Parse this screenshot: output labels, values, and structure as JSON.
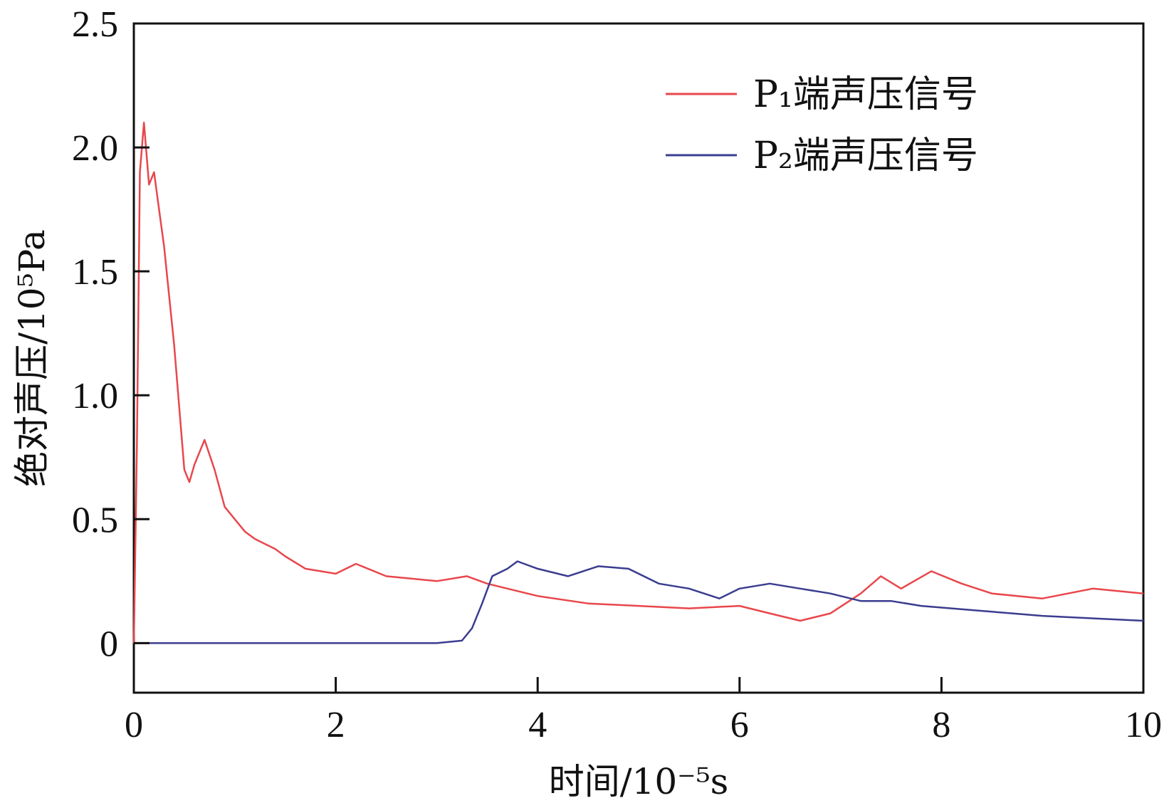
{
  "chart_data": {
    "type": "line",
    "xlabel": "时间/10⁻⁵s",
    "ylabel": "绝对声压/10⁵Pa",
    "xlim": [
      0,
      10
    ],
    "ylim": [
      -0.2,
      2.5
    ],
    "x_ticks": [
      0,
      2,
      4,
      6,
      8,
      10
    ],
    "x_tick_labels": [
      "0",
      "2",
      "4",
      "6",
      "8",
      "10"
    ],
    "y_ticks": [
      0,
      0.5,
      1.0,
      1.5,
      2.0,
      2.5
    ],
    "y_tick_labels": [
      "0",
      "0.5",
      "1.0",
      "1.5",
      "2.0",
      "2.5"
    ],
    "grid": false,
    "legend_position": "top-right",
    "series": [
      {
        "name": "P₁端声压信号",
        "color": "#e8474c",
        "x": [
          0,
          0.03,
          0.06,
          0.1,
          0.15,
          0.2,
          0.25,
          0.3,
          0.35,
          0.4,
          0.45,
          0.5,
          0.55,
          0.6,
          0.7,
          0.8,
          0.9,
          1.0,
          1.1,
          1.2,
          1.3,
          1.4,
          1.5,
          1.7,
          2.0,
          2.2,
          2.5,
          3.0,
          3.3,
          3.5,
          3.7,
          4.0,
          4.5,
          5.0,
          5.5,
          6.0,
          6.3,
          6.6,
          6.9,
          7.2,
          7.4,
          7.6,
          7.9,
          8.2,
          8.5,
          9.0,
          9.5,
          10.0
        ],
        "values": [
          0.0,
          0.8,
          1.9,
          2.1,
          1.85,
          1.9,
          1.75,
          1.6,
          1.4,
          1.2,
          0.95,
          0.7,
          0.65,
          0.72,
          0.82,
          0.7,
          0.55,
          0.5,
          0.45,
          0.42,
          0.4,
          0.38,
          0.35,
          0.3,
          0.28,
          0.32,
          0.27,
          0.25,
          0.27,
          0.24,
          0.22,
          0.19,
          0.16,
          0.15,
          0.14,
          0.15,
          0.12,
          0.09,
          0.12,
          0.2,
          0.27,
          0.22,
          0.29,
          0.24,
          0.2,
          0.18,
          0.22,
          0.2
        ]
      },
      {
        "name": "P₂端声压信号",
        "color": "#3b3d8f",
        "x": [
          0,
          1.0,
          2.0,
          3.0,
          3.25,
          3.35,
          3.45,
          3.55,
          3.7,
          3.8,
          4.0,
          4.3,
          4.6,
          4.9,
          5.2,
          5.5,
          5.8,
          6.0,
          6.3,
          6.6,
          6.9,
          7.2,
          7.5,
          7.8,
          8.1,
          8.4,
          8.7,
          9.0,
          9.5,
          10.0
        ],
        "values": [
          0.0,
          0.0,
          0.0,
          0.0,
          0.01,
          0.06,
          0.16,
          0.27,
          0.3,
          0.33,
          0.3,
          0.27,
          0.31,
          0.3,
          0.24,
          0.22,
          0.18,
          0.22,
          0.24,
          0.22,
          0.2,
          0.17,
          0.17,
          0.15,
          0.14,
          0.13,
          0.12,
          0.11,
          0.1,
          0.09
        ]
      }
    ]
  }
}
